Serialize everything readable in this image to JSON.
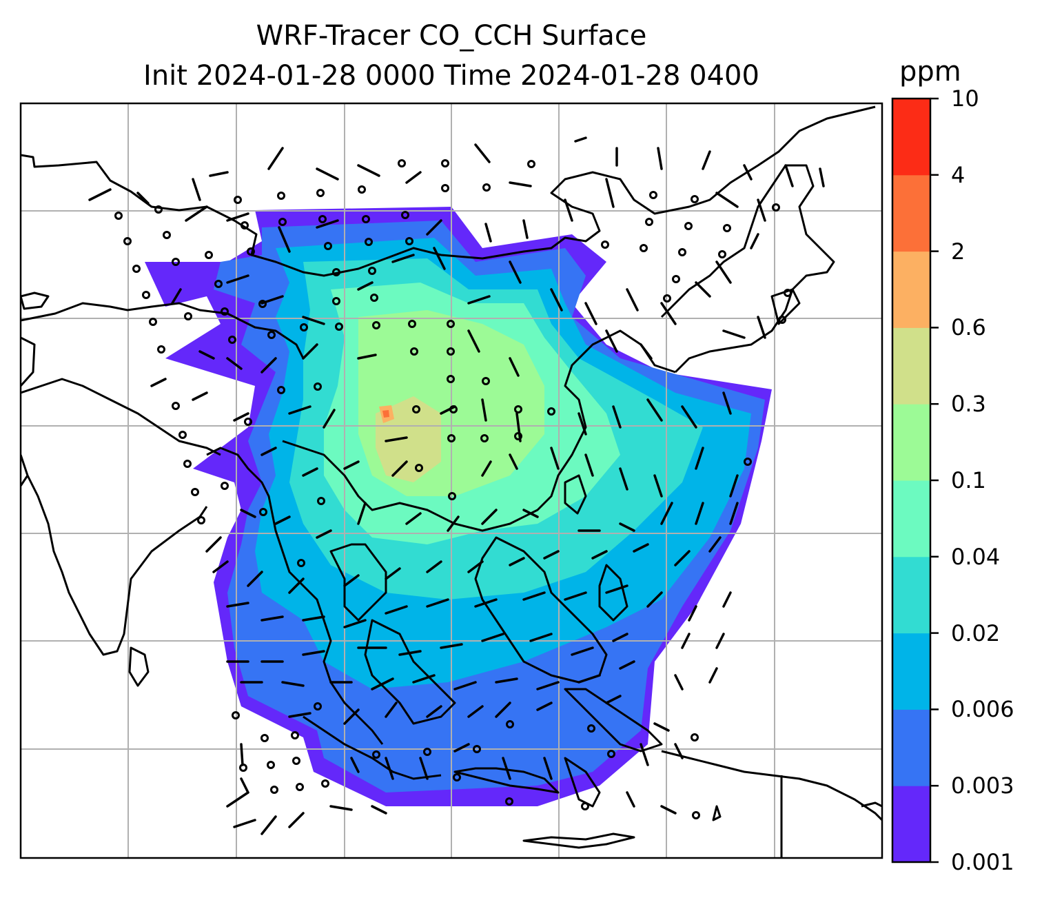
{
  "title": {
    "line1": "WRF-Tracer CO_CCH Surface",
    "line2": "Init 2024-01-28 0000 Time 2024-01-28 0400"
  },
  "colorbar": {
    "unit": "ppm",
    "levels": [
      "0.001",
      "0.003",
      "0.006",
      "0.02",
      "0.04",
      "0.1",
      "0.3",
      "0.6",
      "2",
      "4",
      "10"
    ],
    "colors": [
      "#6428fa",
      "#3674f4",
      "#00b4e8",
      "#32dcd2",
      "#6cfac0",
      "#9cfa96",
      "#d0e08a",
      "#fcb062",
      "#fc7038",
      "#fc2c16"
    ]
  },
  "map": {
    "domain": "WRF tracer domain, East/Southeast Asia",
    "gridlines": true,
    "field": "CO_CCH surface concentration (filled contours)",
    "overlay": "wind barbs"
  }
}
